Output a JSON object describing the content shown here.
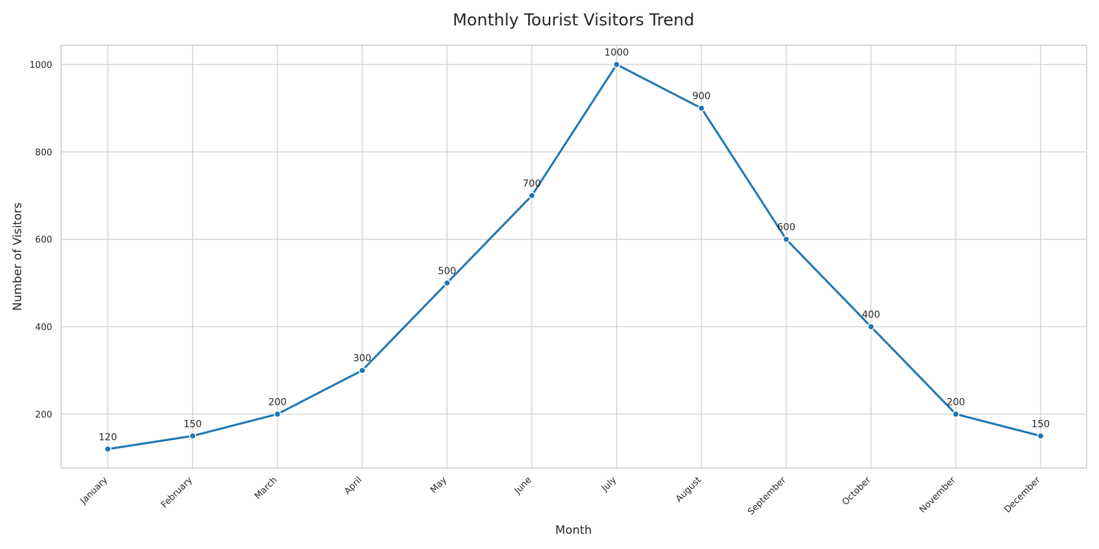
{
  "chart_data": {
    "type": "line",
    "title": "Monthly Tourist Visitors Trend",
    "xlabel": "Month",
    "ylabel": "Number of Visitors",
    "categories": [
      "January",
      "February",
      "March",
      "April",
      "May",
      "June",
      "July",
      "August",
      "September",
      "October",
      "November",
      "December"
    ],
    "series": [
      {
        "values": [
          120,
          150,
          200,
          300,
          500,
          700,
          1000,
          900,
          600,
          400,
          200,
          150
        ],
        "color": "#1f77b4"
      }
    ],
    "yticks": [
      200,
      400,
      600,
      800,
      1000
    ],
    "ylim": [
      76.6,
      1044
    ],
    "grid": true,
    "data_labels": true,
    "xtick_rotation": -45
  }
}
